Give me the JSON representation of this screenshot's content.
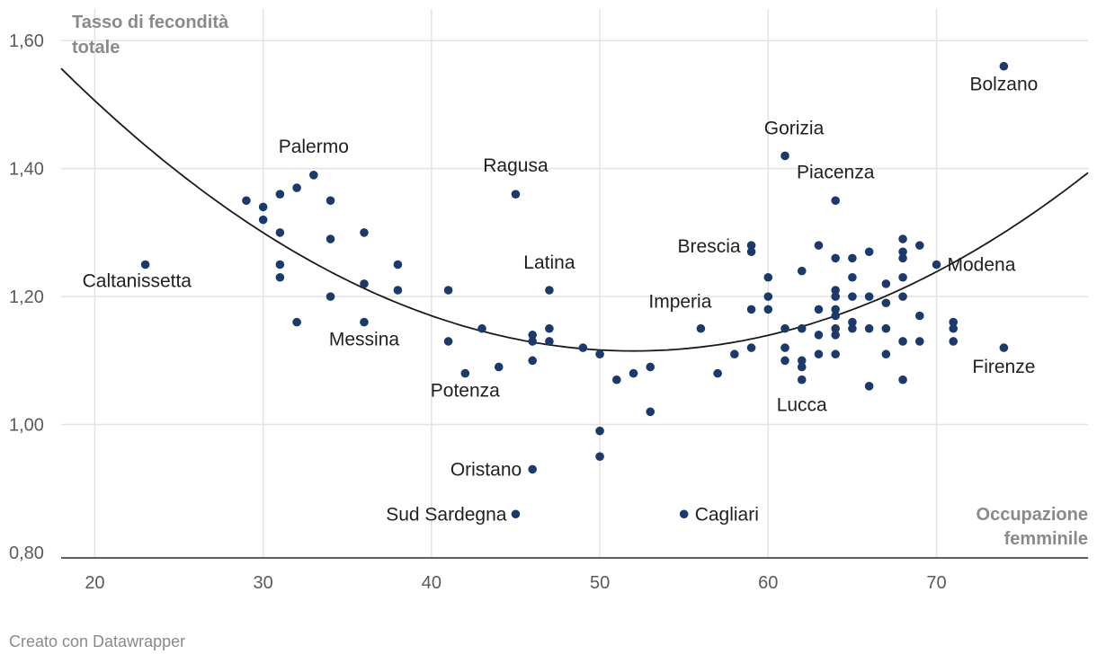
{
  "chart_data": {
    "type": "scatter",
    "ylabel_lines": [
      "Tasso di fecondità",
      "totale"
    ],
    "xlabel_lines": [
      "Occupazione",
      "femminile"
    ],
    "xlim": [
      18,
      79
    ],
    "ylim": [
      0.8,
      1.62
    ],
    "x_ticks": [
      20,
      30,
      40,
      50,
      60,
      70
    ],
    "x_tick_labels": [
      "20",
      "30",
      "40",
      "50",
      "60",
      "70"
    ],
    "y_ticks": [
      0.8,
      1.0,
      1.2,
      1.4,
      1.6
    ],
    "y_tick_labels": [
      "0,80",
      "1,00",
      "1,20",
      "1,40",
      "1,60"
    ],
    "point_color": "#1b3a6b",
    "trendline": {
      "type": "quadratic",
      "vertex_x": 52.0,
      "vertex_y": 1.115,
      "a": 0.000382
    },
    "points": [
      {
        "x": 23,
        "y": 1.25,
        "label": "Caltanissetta"
      },
      {
        "x": 29,
        "y": 1.35
      },
      {
        "x": 30,
        "y": 1.34
      },
      {
        "x": 30,
        "y": 1.32
      },
      {
        "x": 31,
        "y": 1.36
      },
      {
        "x": 31,
        "y": 1.3
      },
      {
        "x": 31,
        "y": 1.25
      },
      {
        "x": 31,
        "y": 1.23
      },
      {
        "x": 32,
        "y": 1.37
      },
      {
        "x": 32,
        "y": 1.16
      },
      {
        "x": 33,
        "y": 1.39,
        "label": "Palermo"
      },
      {
        "x": 34,
        "y": 1.35
      },
      {
        "x": 34,
        "y": 1.29
      },
      {
        "x": 34,
        "y": 1.2
      },
      {
        "x": 36,
        "y": 1.3
      },
      {
        "x": 36,
        "y": 1.22
      },
      {
        "x": 36,
        "y": 1.16,
        "label": "Messina"
      },
      {
        "x": 38,
        "y": 1.25
      },
      {
        "x": 38,
        "y": 1.21
      },
      {
        "x": 41,
        "y": 1.21
      },
      {
        "x": 41,
        "y": 1.13
      },
      {
        "x": 42,
        "y": 1.08,
        "label": "Potenza"
      },
      {
        "x": 43,
        "y": 1.15
      },
      {
        "x": 44,
        "y": 1.09
      },
      {
        "x": 45,
        "y": 1.36,
        "label": "Ragusa"
      },
      {
        "x": 45,
        "y": 0.86,
        "label": "Sud Sardegna"
      },
      {
        "x": 46,
        "y": 1.14
      },
      {
        "x": 46,
        "y": 1.13
      },
      {
        "x": 46,
        "y": 1.1
      },
      {
        "x": 46,
        "y": 0.93,
        "label": "Oristano"
      },
      {
        "x": 47,
        "y": 1.21,
        "label": "Latina"
      },
      {
        "x": 47,
        "y": 1.15
      },
      {
        "x": 47,
        "y": 1.13
      },
      {
        "x": 49,
        "y": 1.12
      },
      {
        "x": 50,
        "y": 1.11
      },
      {
        "x": 50,
        "y": 0.99
      },
      {
        "x": 50,
        "y": 0.95
      },
      {
        "x": 51,
        "y": 1.07
      },
      {
        "x": 52,
        "y": 1.08
      },
      {
        "x": 53,
        "y": 1.09
      },
      {
        "x": 53,
        "y": 1.02
      },
      {
        "x": 55,
        "y": 0.86,
        "label": "Cagliari"
      },
      {
        "x": 56,
        "y": 1.15,
        "label": "Imperia"
      },
      {
        "x": 57,
        "y": 1.08
      },
      {
        "x": 58,
        "y": 1.11
      },
      {
        "x": 59,
        "y": 1.28,
        "label": "Brescia"
      },
      {
        "x": 59,
        "y": 1.27
      },
      {
        "x": 59,
        "y": 1.18
      },
      {
        "x": 59,
        "y": 1.12
      },
      {
        "x": 60,
        "y": 1.23
      },
      {
        "x": 60,
        "y": 1.2
      },
      {
        "x": 60,
        "y": 1.18
      },
      {
        "x": 61,
        "y": 1.42,
        "label": "Gorizia"
      },
      {
        "x": 61,
        "y": 1.15
      },
      {
        "x": 61,
        "y": 1.12
      },
      {
        "x": 61,
        "y": 1.1
      },
      {
        "x": 62,
        "y": 1.24
      },
      {
        "x": 62,
        "y": 1.15
      },
      {
        "x": 62,
        "y": 1.1
      },
      {
        "x": 62,
        "y": 1.09
      },
      {
        "x": 62,
        "y": 1.07,
        "label": "Lucca"
      },
      {
        "x": 63,
        "y": 1.28
      },
      {
        "x": 63,
        "y": 1.18
      },
      {
        "x": 63,
        "y": 1.14
      },
      {
        "x": 63,
        "y": 1.11
      },
      {
        "x": 64,
        "y": 1.35,
        "label": "Piacenza"
      },
      {
        "x": 64,
        "y": 1.26
      },
      {
        "x": 64,
        "y": 1.21
      },
      {
        "x": 64,
        "y": 1.2
      },
      {
        "x": 64,
        "y": 1.18
      },
      {
        "x": 64,
        "y": 1.17
      },
      {
        "x": 64,
        "y": 1.15
      },
      {
        "x": 64,
        "y": 1.14
      },
      {
        "x": 64,
        "y": 1.11
      },
      {
        "x": 65,
        "y": 1.26
      },
      {
        "x": 65,
        "y": 1.23
      },
      {
        "x": 65,
        "y": 1.2
      },
      {
        "x": 65,
        "y": 1.16
      },
      {
        "x": 65,
        "y": 1.15
      },
      {
        "x": 66,
        "y": 1.27
      },
      {
        "x": 66,
        "y": 1.2
      },
      {
        "x": 66,
        "y": 1.15
      },
      {
        "x": 66,
        "y": 1.06
      },
      {
        "x": 67,
        "y": 1.22
      },
      {
        "x": 67,
        "y": 1.19
      },
      {
        "x": 67,
        "y": 1.15
      },
      {
        "x": 67,
        "y": 1.11
      },
      {
        "x": 68,
        "y": 1.29
      },
      {
        "x": 68,
        "y": 1.27
      },
      {
        "x": 68,
        "y": 1.26
      },
      {
        "x": 68,
        "y": 1.23
      },
      {
        "x": 68,
        "y": 1.2
      },
      {
        "x": 68,
        "y": 1.13
      },
      {
        "x": 68,
        "y": 1.07
      },
      {
        "x": 69,
        "y": 1.28
      },
      {
        "x": 69,
        "y": 1.17
      },
      {
        "x": 69,
        "y": 1.13
      },
      {
        "x": 70,
        "y": 1.25,
        "label": "Modena"
      },
      {
        "x": 71,
        "y": 1.16
      },
      {
        "x": 71,
        "y": 1.15
      },
      {
        "x": 71,
        "y": 1.13
      },
      {
        "x": 74,
        "y": 1.56,
        "label": "Bolzano"
      },
      {
        "x": 74,
        "y": 1.12,
        "label": "Firenze"
      }
    ]
  },
  "footer": {
    "credit": "Creato con Datawrapper"
  }
}
